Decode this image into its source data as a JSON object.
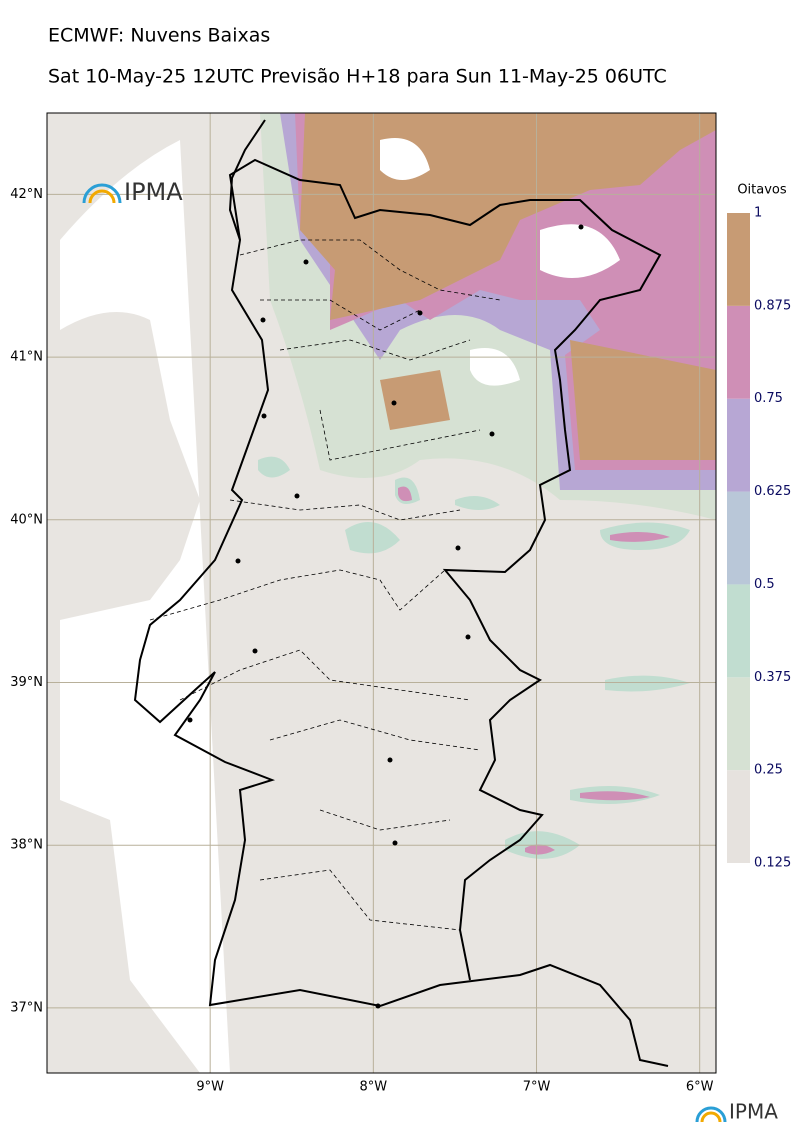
{
  "header": {
    "title": "ECMWF: Nuvens Baixas",
    "subtitle": "Sat 10-May-25 12UTC Previsão H+18 para Sun 11-May-25 06UTC"
  },
  "logo": {
    "text": "IPMA"
  },
  "map": {
    "xlim": [
      -10.0,
      -5.9
    ],
    "ylim": [
      36.6,
      42.5
    ],
    "xticks": [
      {
        "value": -9,
        "label": "9°W"
      },
      {
        "value": -8,
        "label": "8°W"
      },
      {
        "value": -7,
        "label": "7°W"
      },
      {
        "value": -6,
        "label": "6°W"
      }
    ],
    "yticks": [
      {
        "value": 42,
        "label": "42°N"
      },
      {
        "value": 41,
        "label": "41°N"
      },
      {
        "value": 40,
        "label": "40°N"
      },
      {
        "value": 39,
        "label": "39°N"
      },
      {
        "value": 38,
        "label": "38°N"
      },
      {
        "value": 37,
        "label": "37°N"
      }
    ]
  },
  "colorbar": {
    "title": "Oitavos",
    "levels": [
      0.125,
      0.25,
      0.375,
      0.5,
      0.625,
      0.75,
      0.875,
      1
    ],
    "colors": [
      "#e6e2de",
      "#d6e1d3",
      "#c1ddd0",
      "#b9c7d8",
      "#b7a7d4",
      "#cf8fb6",
      "#c79b74"
    ]
  }
}
